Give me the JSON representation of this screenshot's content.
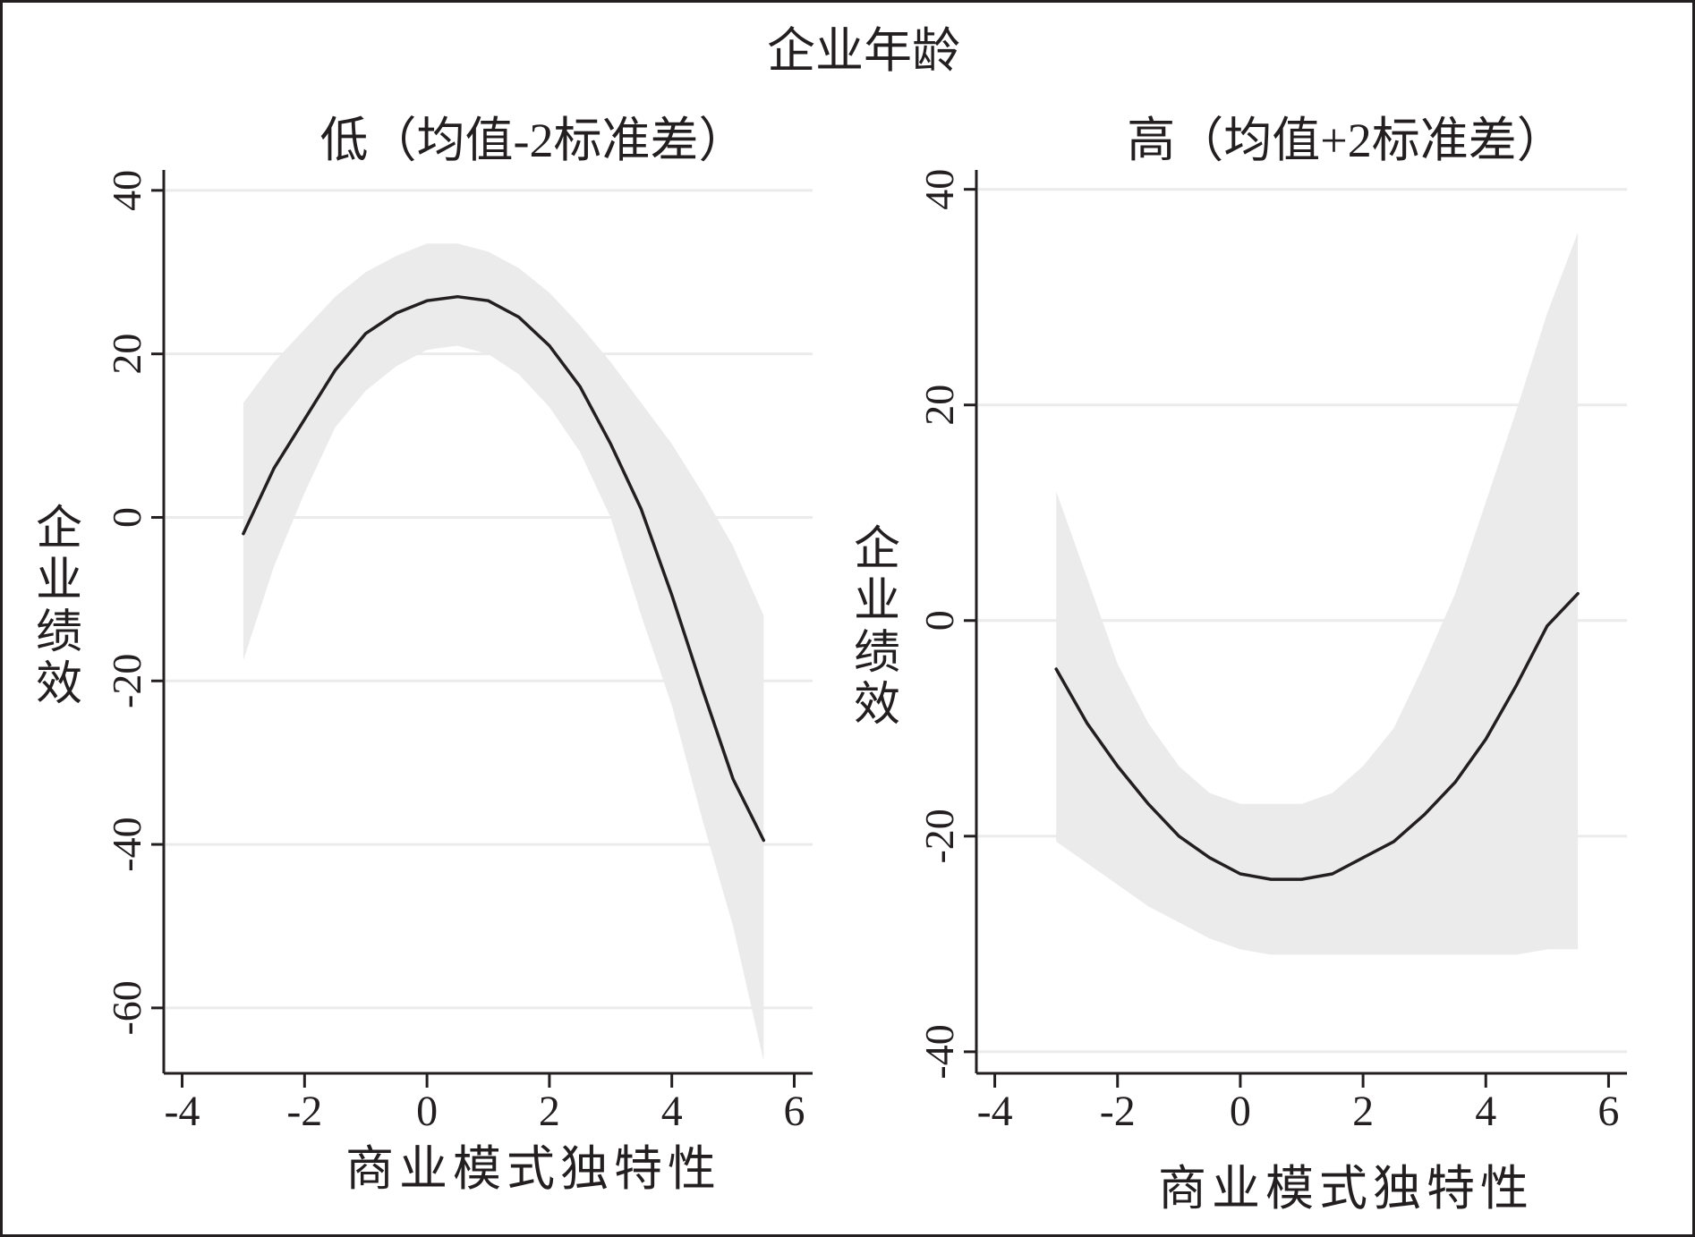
{
  "super_title": "企业年龄",
  "colors": {
    "line": "#231f20",
    "band": "#ebebeb",
    "grid": "#ebebeb",
    "axis": "#231f20",
    "border": "#231f20"
  },
  "chart_data": [
    {
      "type": "line",
      "title": "低（均值-2标准差）",
      "xlabel": "商业模式独特性",
      "ylabel": "企业绩效",
      "xlim": [
        -4.3,
        6.3
      ],
      "ylim": [
        -68,
        42.5
      ],
      "xticks": [
        -4,
        -2,
        0,
        2,
        4,
        6
      ],
      "xtick_labels": [
        "-4",
        "-2",
        "0",
        "2",
        "4",
        "6"
      ],
      "yticks": [
        40,
        20,
        0,
        -20,
        -40,
        -60
      ],
      "ytick_labels": [
        "40",
        "20",
        "0",
        "-20",
        "-40",
        "-60"
      ],
      "grid": true,
      "legend": "none",
      "x": [
        -3,
        -2.5,
        -2,
        -1.5,
        -1,
        -0.5,
        0,
        0.5,
        1,
        1.5,
        2,
        2.5,
        3,
        3.5,
        4,
        4.5,
        5,
        5.5
      ],
      "series": [
        {
          "role": "estimate",
          "values": [
            -2,
            6,
            12,
            18,
            22.5,
            25,
            26.5,
            27,
            26.5,
            24.5,
            21,
            16,
            9,
            1,
            -9.5,
            -21,
            -32,
            -39.5
          ]
        },
        {
          "role": "ci_upper",
          "values": [
            14,
            19,
            23,
            27,
            30,
            32,
            33.5,
            33.5,
            32.5,
            30.5,
            27.5,
            23.5,
            19,
            14,
            9,
            3,
            -3.5,
            -12
          ]
        },
        {
          "role": "ci_lower",
          "values": [
            -17.5,
            -6,
            3,
            11,
            15.5,
            18.5,
            20.5,
            21,
            20,
            17.5,
            13.5,
            8,
            0,
            -12,
            -23,
            -37,
            -50,
            -66.5
          ]
        }
      ]
    },
    {
      "type": "line",
      "title": "高（均值+2标准差）",
      "xlabel": "商业模式独特性",
      "ylabel": "企业绩效",
      "xlim": [
        -4.3,
        6.3
      ],
      "ylim": [
        -42,
        41.8
      ],
      "xticks": [
        -4,
        -2,
        0,
        2,
        4,
        6
      ],
      "xtick_labels": [
        "-4",
        "-2",
        "0",
        "2",
        "4",
        "6"
      ],
      "yticks": [
        40,
        20,
        0,
        -20,
        -40
      ],
      "ytick_labels": [
        "40",
        "20",
        "0",
        "-20",
        "-40"
      ],
      "grid": true,
      "legend": "none",
      "x": [
        -3,
        -2.5,
        -2,
        -1.5,
        -1,
        -0.5,
        0,
        0.5,
        1,
        1.5,
        2,
        2.5,
        3,
        3.5,
        4,
        4.5,
        5,
        5.5
      ],
      "series": [
        {
          "role": "estimate",
          "values": [
            -4.5,
            -9.5,
            -13.5,
            -17,
            -20,
            -22,
            -23.5,
            -24,
            -24,
            -23.5,
            -22,
            -20.5,
            -18,
            -15,
            -11,
            -6,
            -0.5,
            2.5
          ]
        },
        {
          "role": "ci_upper",
          "values": [
            12,
            4,
            -4,
            -9.5,
            -13.5,
            -16,
            -17,
            -17,
            -17,
            -16,
            -13.5,
            -10,
            -4,
            2.5,
            11,
            19.5,
            28.5,
            36
          ]
        },
        {
          "role": "ci_lower",
          "values": [
            -20.5,
            -22.5,
            -24.5,
            -26.5,
            -28,
            -29.5,
            -30.5,
            -31,
            -31,
            -31,
            -31,
            -31,
            -31,
            -31,
            -31,
            -31,
            -30.5,
            -30.5
          ]
        }
      ]
    }
  ]
}
